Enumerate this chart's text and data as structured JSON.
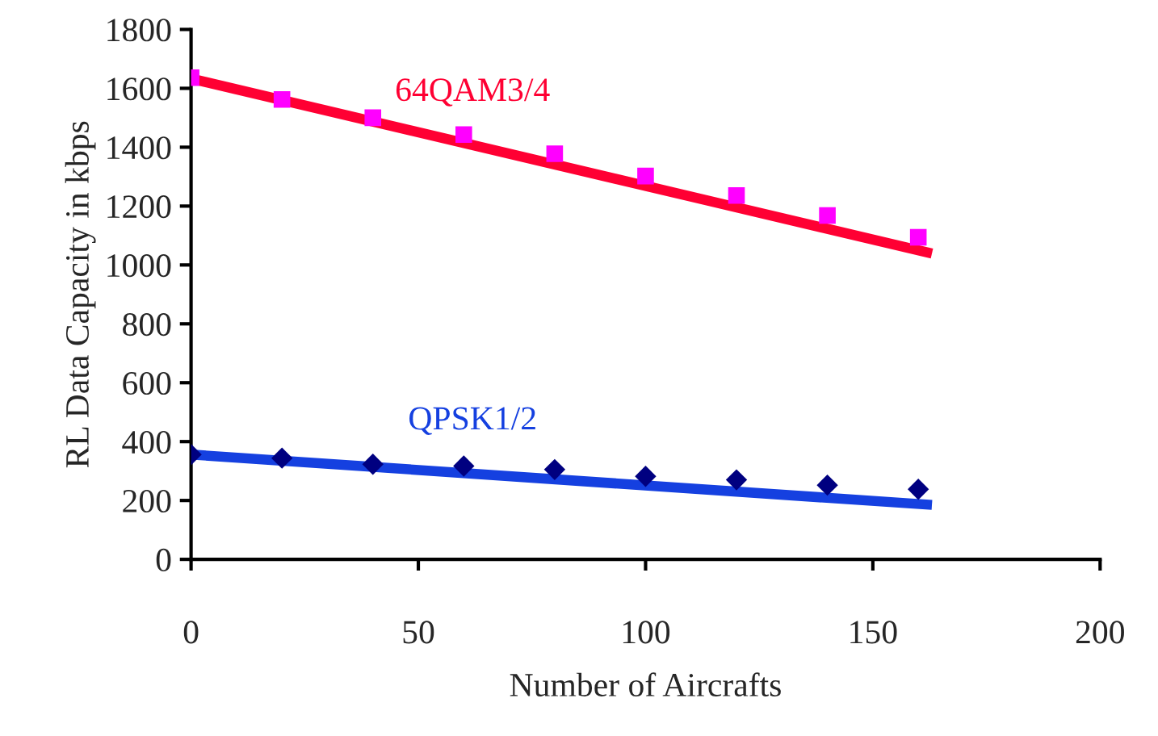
{
  "chart_data": {
    "type": "scatter",
    "xlabel": "Number of Aircrafts",
    "ylabel": "RL Data Capacity in kbps",
    "xlim": [
      0,
      200
    ],
    "xticks": [
      0,
      50,
      100,
      150,
      200
    ],
    "ylim": [
      0,
      1800
    ],
    "yticks": [
      0,
      200,
      400,
      600,
      800,
      1000,
      1200,
      1400,
      1600,
      1800
    ],
    "grid": false,
    "legend": false,
    "series": [
      {
        "color": "#ff00ff",
        "marker": "square",
        "x": [
          0,
          20,
          40,
          60,
          80,
          100,
          120,
          140,
          160
        ],
        "values": [
          1636,
          1562,
          1500,
          1443,
          1378,
          1302,
          1236,
          1168,
          1094
        ]
      },
      {
        "color": "#000080",
        "marker": "diamond",
        "x": [
          0,
          20,
          40,
          60,
          80,
          100,
          120,
          140,
          160
        ],
        "values": [
          356,
          344,
          323,
          317,
          305,
          282,
          270,
          252,
          238
        ]
      },
      {
        "type": "line",
        "name": "64QAM3/4",
        "color": "#ff0033",
        "line_style": "solid",
        "x": [
          0,
          163
        ],
        "values": [
          1633,
          1039
        ]
      },
      {
        "type": "line",
        "name": "QPSK1/2",
        "color": "#1540e0",
        "line_style": "solid",
        "x": [
          0,
          163
        ],
        "values": [
          356,
          185
        ]
      }
    ]
  }
}
